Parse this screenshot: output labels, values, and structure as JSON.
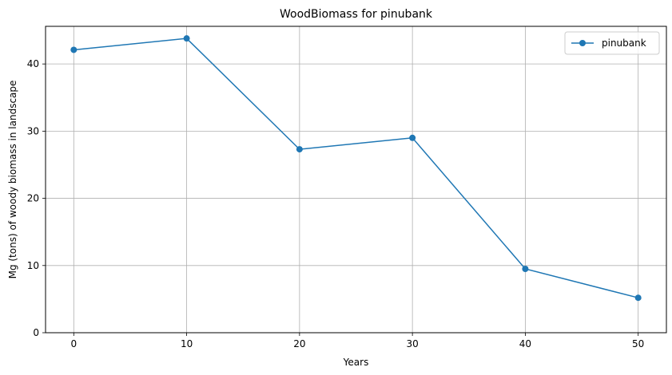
{
  "chart_data": {
    "type": "line",
    "title": "WoodBiomass for pinubank",
    "xlabel": "Years",
    "ylabel": "Mg (tons) of woody biomass in landscape",
    "x": [
      0,
      10,
      20,
      30,
      40,
      50
    ],
    "series": [
      {
        "name": "pinubank",
        "values": [
          42.1,
          43.8,
          27.3,
          29.0,
          9.5,
          5.2
        ],
        "color": "#1f77b4",
        "marker": "circle"
      }
    ],
    "xticks": [
      0,
      10,
      20,
      30,
      40,
      50
    ],
    "yticks": [
      0,
      10,
      20,
      30,
      40
    ],
    "xlim": [
      -2.5,
      52.5
    ],
    "ylim": [
      0,
      45.6
    ],
    "grid": true,
    "legend_position": "top-right"
  }
}
